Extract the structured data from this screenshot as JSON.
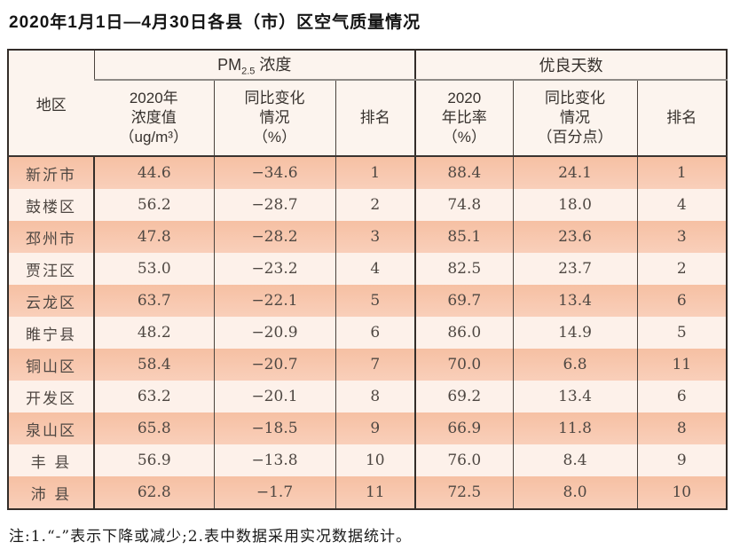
{
  "page": {
    "title": "2020年1月1日—4月30日各县（市）区空气质量情况",
    "footnote": "注:1.“-”表示下降或减少;2.表中数据采用实况数据统计。"
  },
  "colors": {
    "row_salmon": "#f7c4a9",
    "row_light": "#fdf1ea",
    "header_bg": "#fcf4ee",
    "border_dark": "#332d29",
    "header_subline_gray": "#8e8a86",
    "data_text": "#4e4742"
  },
  "table": {
    "header": {
      "region": "地区",
      "pm_group": {
        "prefix": "PM",
        "sub": "2.5",
        "suffix": " 浓度"
      },
      "days_group": "优良天数",
      "pm_value": "2020年\n浓度值\n（ug/m³）",
      "pm_change": "同比变化\n情况\n（%）",
      "pm_rank": "排名",
      "days_rate": "2020\n年比率\n（%）",
      "days_change": "同比变化\n情况\n（百分点）",
      "days_rank": "排名"
    },
    "rows": [
      {
        "region": "新沂市",
        "pm_value": "44.6",
        "pm_change": "−34.6",
        "pm_rank": "1",
        "days_rate": "88.4",
        "days_change": "24.1",
        "days_rank": "1"
      },
      {
        "region": "鼓楼区",
        "pm_value": "56.2",
        "pm_change": "−28.7",
        "pm_rank": "2",
        "days_rate": "74.8",
        "days_change": "18.0",
        "days_rank": "4"
      },
      {
        "region": "邳州市",
        "pm_value": "47.8",
        "pm_change": "−28.2",
        "pm_rank": "3",
        "days_rate": "85.1",
        "days_change": "23.6",
        "days_rank": "3"
      },
      {
        "region": "贾汪区",
        "pm_value": "53.0",
        "pm_change": "−23.2",
        "pm_rank": "4",
        "days_rate": "82.5",
        "days_change": "23.7",
        "days_rank": "2"
      },
      {
        "region": "云龙区",
        "pm_value": "63.7",
        "pm_change": "−22.1",
        "pm_rank": "5",
        "days_rate": "69.7",
        "days_change": "13.4",
        "days_rank": "6"
      },
      {
        "region": "睢宁县",
        "pm_value": "48.2",
        "pm_change": "−20.9",
        "pm_rank": "6",
        "days_rate": "86.0",
        "days_change": "14.9",
        "days_rank": "5"
      },
      {
        "region": "铜山区",
        "pm_value": "58.4",
        "pm_change": "−20.7",
        "pm_rank": "7",
        "days_rate": "70.0",
        "days_change": "6.8",
        "days_rank": "11"
      },
      {
        "region": "开发区",
        "pm_value": "63.2",
        "pm_change": "−20.1",
        "pm_rank": "8",
        "days_rate": "69.2",
        "days_change": "13.4",
        "days_rank": "6"
      },
      {
        "region": "泉山区",
        "pm_value": "65.8",
        "pm_change": "−18.5",
        "pm_rank": "9",
        "days_rate": "66.9",
        "days_change": "11.8",
        "days_rank": "8"
      },
      {
        "region": "丰 县",
        "pm_value": "56.9",
        "pm_change": "−13.8",
        "pm_rank": "10",
        "days_rate": "76.0",
        "days_change": "8.4",
        "days_rank": "9"
      },
      {
        "region": "沛 县",
        "pm_value": "62.8",
        "pm_change": "−1.7",
        "pm_rank": "11",
        "days_rate": "72.5",
        "days_change": "8.0",
        "days_rank": "10"
      }
    ]
  }
}
